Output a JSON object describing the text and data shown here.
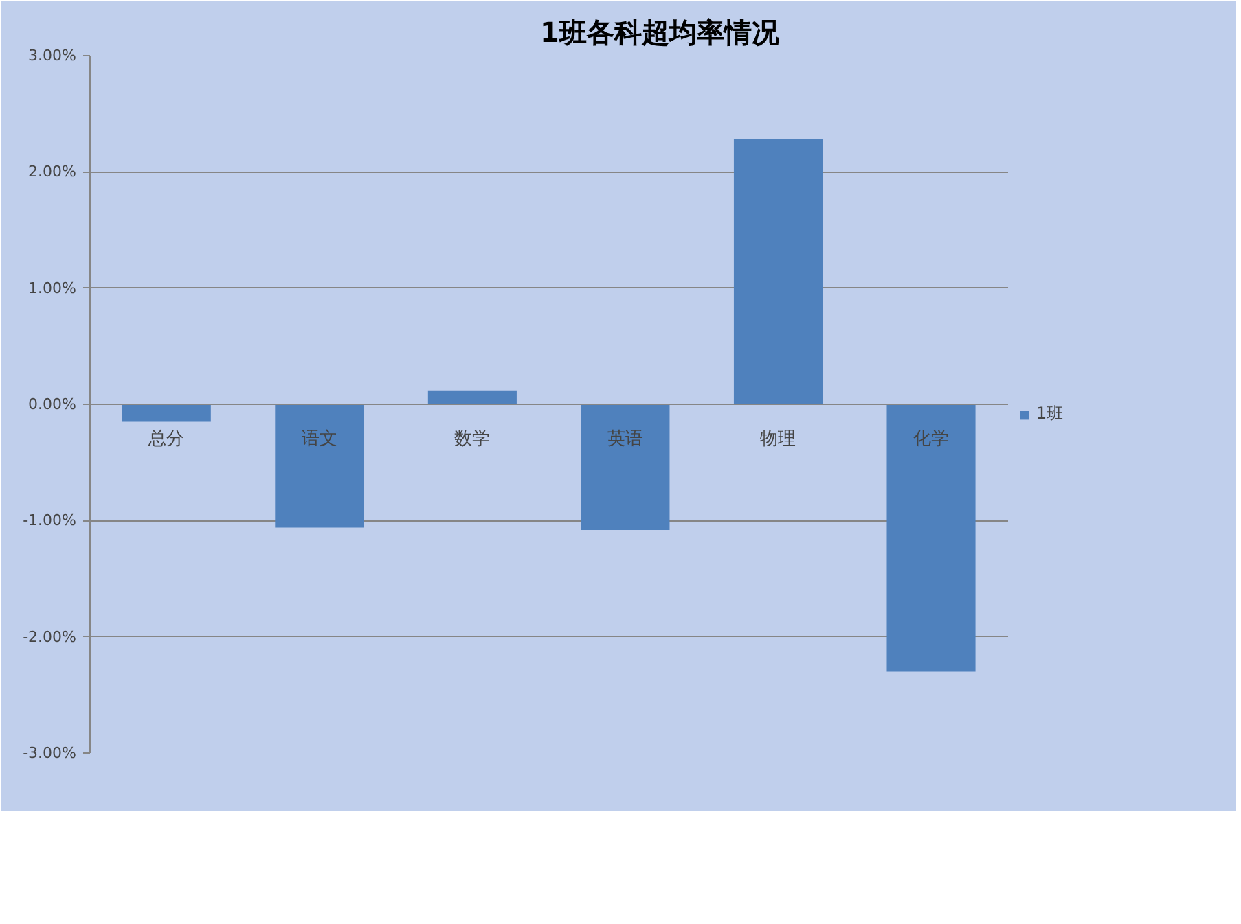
{
  "chart_data": {
    "type": "bar",
    "title": "1班各科超均率情况",
    "categories": [
      "总分",
      "语文",
      "数学",
      "英语",
      "物理",
      "化学"
    ],
    "series": [
      {
        "name": "1班",
        "color": "#4f81bd",
        "values": [
          -0.15,
          -1.06,
          0.12,
          -1.08,
          2.28,
          -2.3
        ]
      }
    ],
    "ylim": [
      -3,
      3
    ],
    "yticks": [
      {
        "value": -3,
        "label": "-3.00%"
      },
      {
        "value": -2,
        "label": "-2.00%"
      },
      {
        "value": -1,
        "label": "-1.00%"
      },
      {
        "value": 0,
        "label": "0.00%"
      },
      {
        "value": 1,
        "label": "1.00%"
      },
      {
        "value": 2,
        "label": "2.00%"
      },
      {
        "value": 3,
        "label": "3.00%"
      }
    ],
    "grid": "y",
    "legend": "right"
  }
}
